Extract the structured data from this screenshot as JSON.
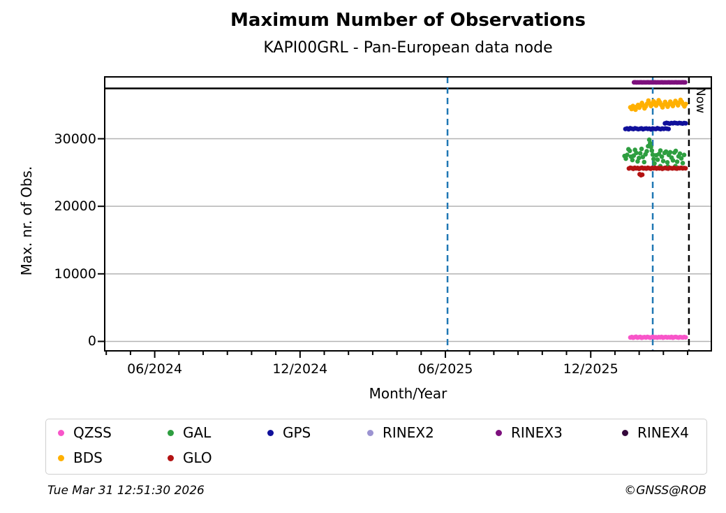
{
  "header": {
    "title": "Maximum Number of Observations",
    "subtitle": "KAPI00GRL - Pan-European data node"
  },
  "footer": {
    "timestamp": "Tue Mar 31 12:51:30 2026",
    "credit": "©GNSS@ROB"
  },
  "chart_data": {
    "type": "scatter",
    "title": "Maximum Number of Observations",
    "subtitle": "KAPI00GRL - Pan-European data node",
    "xlabel": "Month/Year",
    "ylabel": "Max. nr. of Obs.",
    "xlim": [
      2024.2447,
      2026.3316
    ],
    "ylim": [
      -1400,
      39160
    ],
    "grid": "horizontal-gridlines-on",
    "grid_color": "#b3b3b3",
    "x_major_ticks": [
      {
        "label": "06/2024",
        "x": 2024.4167
      },
      {
        "label": "12/2024",
        "x": 2024.9167
      },
      {
        "label": "06/2025",
        "x": 2025.4167
      },
      {
        "label": "12/2025",
        "x": 2025.9167
      }
    ],
    "x_minor_ticks": "monthly",
    "y_ticks": [
      {
        "label": "0",
        "v": 0
      },
      {
        "label": "10000",
        "v": 10000
      },
      {
        "label": "20000",
        "v": 20000
      },
      {
        "label": "30000",
        "v": 30000
      }
    ],
    "reference_line": {
      "v": 37450,
      "color": "#000000",
      "style": "solid"
    },
    "event_lines": [
      {
        "x": 2025.424,
        "color": "#1f77b4",
        "style": "dashed"
      },
      {
        "x": 2026.13,
        "color": "#1f77b4",
        "style": "dashed"
      }
    ],
    "now_line": {
      "x": 2026.2545,
      "label": "Now",
      "color": "#000000",
      "style": "dashed"
    },
    "legend": {
      "position": "below-chart",
      "rows": [
        [
          "QZSS",
          "GAL",
          "GPS",
          "RINEX2",
          "RINEX3",
          "RINEX4"
        ],
        [
          "BDS",
          "GLO"
        ]
      ]
    },
    "series": [
      {
        "name": "QZSS",
        "color": "#f855c9",
        "runs": [
          {
            "x0": 2026.053,
            "dx": 0.00488,
            "values": [
              580,
              650,
              540,
              620,
              690,
              560,
              610,
              670,
              530,
              600,
              640,
              570,
              660,
              610,
              550,
              630,
              680,
              590,
              620,
              560,
              640,
              600,
              670,
              550,
              610,
              650,
              580,
              630,
              590,
              660,
              540,
              620,
              670,
              600,
              560,
              640,
              610,
              580,
              650,
              600
            ]
          }
        ]
      },
      {
        "name": "BDS",
        "color": "#ffb000",
        "runs": [
          {
            "x0": 2026.053,
            "dx": 0.00443,
            "values": [
              34650,
              34400,
              34850,
              34550,
              34300,
              34750,
              35000,
              34600,
              34900,
              35300,
              34950,
              34500,
              34800,
              35200,
              35650,
              35250,
              34850,
              35100,
              35550,
              35350,
              34900,
              35200,
              35700,
              35400,
              35000,
              34650,
              35050,
              35450,
              35150,
              34750,
              35100,
              35500,
              35200,
              34850,
              35250,
              35600,
              35300,
              34950,
              35350,
              35750,
              35450,
              35100,
              34800,
              35150
            ]
          }
        ]
      },
      {
        "name": "GPS",
        "color": "#10109b",
        "runs": [
          {
            "x0": 2026.036,
            "dx": 0.0055,
            "values": [
              31450,
              31520,
              31400,
              31560,
              31480,
              31430,
              31550,
              31500,
              31420,
              31470,
              31540,
              31410,
              31490,
              31530,
              31460,
              31500,
              31380,
              31520,
              31470,
              31440,
              31560,
              31490,
              31420,
              31510,
              31460,
              31530,
              31480,
              31450
            ]
          },
          {
            "x0": 2026.172,
            "dx": 0.0055,
            "values": [
              32280,
              32350,
              32300,
              32240,
              32330,
              32290,
              32360,
              32310,
              32270,
              32340,
              32300,
              32250,
              32320,
              32290
            ]
          }
        ]
      },
      {
        "name": "GAL",
        "color": "#2e9e40",
        "runs": [
          {
            "x0": 2026.033,
            "dx": 0.0045,
            "values": [
              27450,
              27050,
              27600,
              28450,
              28200,
              27350,
              26850,
              27500,
              28350,
              27900,
              26650,
              27150,
              27850,
              28500,
              27300,
              26550,
              27700,
              28150,
              28900
            ]
          },
          {
            "x0": 2026.118,
            "dx": 0.003,
            "values": [
              29850,
              29350,
              28800,
              28250,
              27650,
              27000,
              26350
            ]
          },
          {
            "x0": 2026.142,
            "dx": 0.0048,
            "values": [
              27550,
              26900,
              27750,
              28250,
              27350,
              26700,
              27900,
              28100,
              26500,
              27600,
              28000,
              27200,
              26800,
              27950,
              28200,
              26600,
              27400,
              27800,
              27100,
              26400,
              27600
            ]
          },
          {
            "x0": 2026.156,
            "dx": 0.026,
            "values": [
              25950,
              25900,
              25950
            ]
          }
        ]
      },
      {
        "name": "GLO",
        "color": "#b31212",
        "runs": [
          {
            "x0": 2026.048,
            "dx": 0.005,
            "values": [
              25600,
              25700,
              25650,
              25550,
              25700,
              25620,
              25680,
              25550,
              25650,
              25720,
              25600,
              25660,
              25580,
              25700,
              25640,
              25560,
              25690,
              25630,
              25710,
              25590,
              25660,
              25610,
              25680,
              25550,
              25640,
              25700,
              25620,
              25570,
              25690,
              25650,
              25600,
              25710,
              25630,
              25580,
              25670,
              25640,
              25700,
              25610,
              25660,
              25630
            ]
          },
          {
            "x0": 2026.085,
            "dx": 0.0045,
            "values": [
              24750,
              24600,
              24680
            ]
          }
        ]
      },
      {
        "name": "RINEX2",
        "color": "#9b93d1",
        "runs": []
      },
      {
        "name": "RINEX3",
        "color": "#7d107d",
        "runs": [
          {
            "x0": 2026.0655,
            "dx": 0.004,
            "values": [
              38350,
              38360,
              38340,
              38355,
              38345,
              38350,
              38360,
              38340,
              38350,
              38355,
              38345,
              38350,
              38360,
              38340,
              38350,
              38355,
              38345,
              38350,
              38360,
              38340,
              38350,
              38355,
              38345,
              38350,
              38360,
              38340,
              38350,
              38355,
              38345,
              38350,
              38360,
              38340,
              38350,
              38355,
              38345,
              38350,
              38360,
              38340,
              38350,
              38355,
              38345,
              38350,
              38360,
              38340,
              38350
            ]
          }
        ]
      },
      {
        "name": "RINEX4",
        "color": "#35093c",
        "runs": []
      }
    ]
  }
}
